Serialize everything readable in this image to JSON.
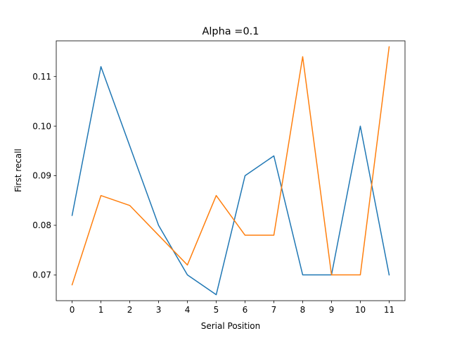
{
  "chart_data": {
    "type": "line",
    "title": "Alpha =0.1",
    "xlabel": "Serial Position",
    "ylabel": "First recall",
    "x": [
      0,
      1,
      2,
      3,
      4,
      5,
      6,
      7,
      8,
      9,
      10,
      11
    ],
    "xticks": [
      "0",
      "1",
      "2",
      "3",
      "4",
      "5",
      "6",
      "7",
      "8",
      "9",
      "10",
      "11"
    ],
    "yticks": [
      0.07,
      0.08,
      0.09,
      0.1,
      0.11
    ],
    "ytick_labels": [
      "0.07",
      "0.08",
      "0.09",
      "0.10",
      "0.11"
    ],
    "xlim": [
      -0.55,
      11.55
    ],
    "ylim": [
      0.0648,
      0.1172
    ],
    "grid": false,
    "series": [
      {
        "color": "#1f77b4",
        "values": [
          0.082,
          0.112,
          0.096,
          0.08,
          0.07,
          0.066,
          0.09,
          0.094,
          0.07,
          0.07,
          0.1,
          0.07
        ]
      },
      {
        "color": "#ff7f0e",
        "values": [
          0.068,
          0.086,
          0.084,
          0.078,
          0.072,
          0.086,
          0.078,
          0.078,
          0.114,
          0.07,
          0.07,
          0.116
        ]
      }
    ]
  }
}
